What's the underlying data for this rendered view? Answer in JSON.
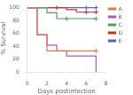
{
  "chart_data": {
    "type": "step",
    "xlabel": "Days postinfection",
    "ylabel": "% Survival",
    "xlim": [
      0,
      8
    ],
    "ylim": [
      0,
      105
    ],
    "xticks": [
      0,
      2,
      4,
      6,
      8
    ],
    "yticks": [
      0,
      20,
      40,
      60,
      80,
      100
    ],
    "grid": false,
    "legend": "upper right",
    "series": [
      {
        "name": "A",
        "color": "#E07848",
        "x": [
          0,
          1,
          2,
          7
        ],
        "values": [
          100,
          58,
          33,
          33
        ],
        "censor_x": [
          7
        ],
        "censor_values": [
          33
        ]
      },
      {
        "name": "B",
        "color": "#A060B0",
        "x": [
          0,
          1,
          2,
          3,
          4,
          5,
          6,
          7
        ],
        "values": [
          100,
          58,
          42,
          33,
          25,
          25,
          25,
          0
        ],
        "censor_x": [],
        "censor_values": []
      },
      {
        "name": "C",
        "color": "#50A060",
        "x": [
          0,
          2,
          3,
          4,
          5,
          6,
          7
        ],
        "values": [
          100,
          92,
          83,
          83,
          83,
          83,
          83
        ],
        "censor_x": [
          4,
          7
        ],
        "censor_values": [
          83,
          83
        ]
      },
      {
        "name": "D",
        "color": "#C03030",
        "x": [
          0,
          3,
          4,
          5,
          6,
          7
        ],
        "values": [
          100,
          100,
          97,
          93,
          93,
          93
        ],
        "censor_x": [
          3,
          6,
          7
        ],
        "censor_values": [
          100,
          93,
          93
        ]
      },
      {
        "name": "E",
        "color": "#6060C0",
        "x": [
          0,
          6,
          7
        ],
        "values": [
          100,
          100,
          100
        ],
        "censor_x": [
          6,
          7
        ],
        "censor_values": [
          100,
          100
        ]
      }
    ]
  }
}
